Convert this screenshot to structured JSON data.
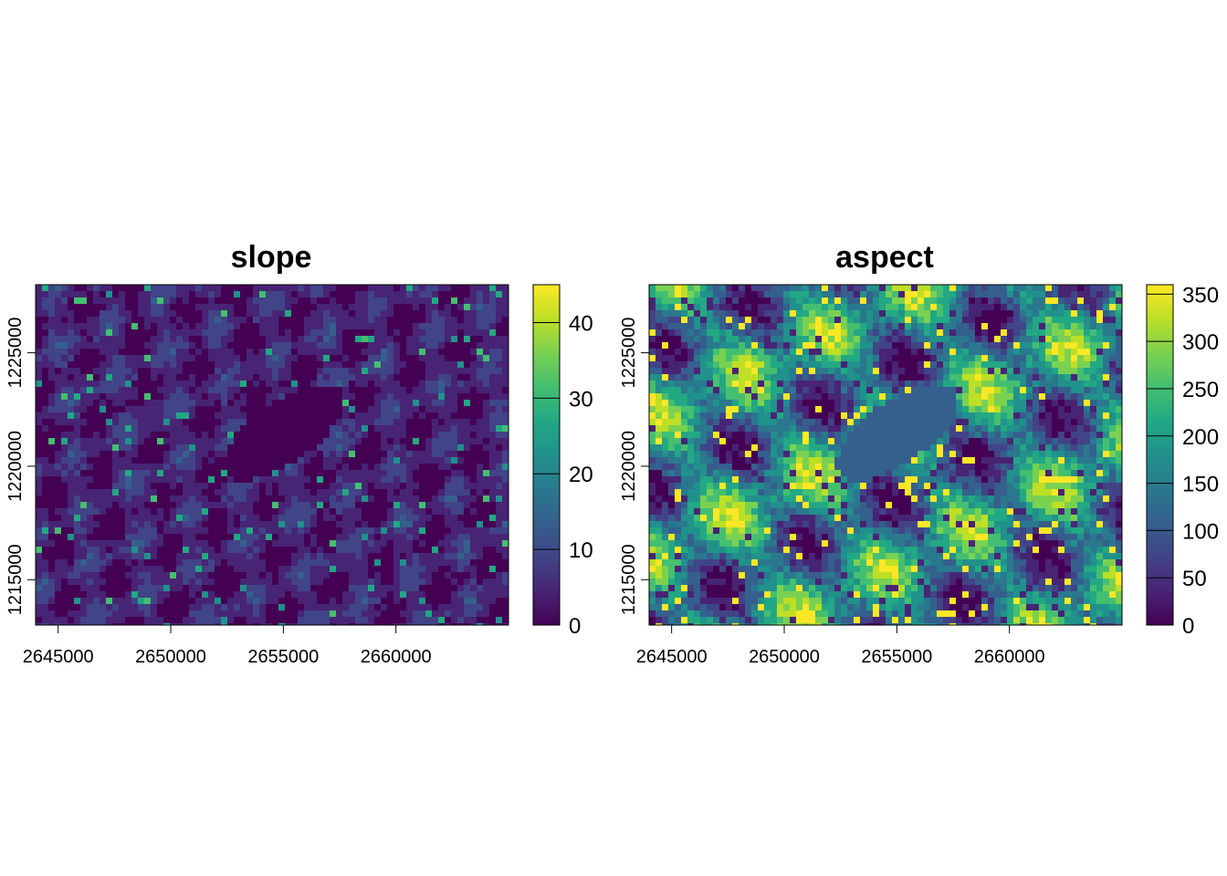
{
  "chart_data": [
    {
      "type": "heatmap",
      "title": "slope",
      "x_ticks": [
        2645000,
        2650000,
        2655000,
        2660000
      ],
      "y_ticks": [
        1215000,
        1220000,
        1225000
      ],
      "xlim": [
        2644000,
        2665000
      ],
      "ylim": [
        1213000,
        1228000
      ],
      "colorbar": {
        "min": 0,
        "max": 45,
        "ticks": [
          0,
          10,
          20,
          30,
          40
        ],
        "palette": "viridis"
      },
      "lake": {
        "cx": 2655000,
        "cy": 1221500,
        "value": 0
      }
    },
    {
      "type": "heatmap",
      "title": "aspect",
      "x_ticks": [
        2645000,
        2650000,
        2655000,
        2660000
      ],
      "y_ticks": [
        1215000,
        1220000,
        1225000
      ],
      "xlim": [
        2644000,
        2665000
      ],
      "ylim": [
        1213000,
        1228000
      ],
      "colorbar": {
        "min": 0,
        "max": 360,
        "ticks": [
          0,
          50,
          100,
          150,
          200,
          250,
          300,
          350
        ],
        "palette": "viridis"
      },
      "lake": {
        "cx": 2655000,
        "cy": 1221500,
        "value": 90
      }
    }
  ],
  "labels": {
    "slope_title": "slope",
    "aspect_title": "aspect",
    "x_tick_labels": [
      "2645000",
      "2650000",
      "2655000",
      "2660000"
    ],
    "y_tick_labels": [
      "1215000",
      "1220000",
      "1225000"
    ],
    "slope_legend_labels": [
      "0",
      "10",
      "20",
      "30",
      "40"
    ],
    "aspect_legend_labels": [
      "0",
      "50",
      "100",
      "150",
      "200",
      "250",
      "300",
      "350"
    ]
  }
}
